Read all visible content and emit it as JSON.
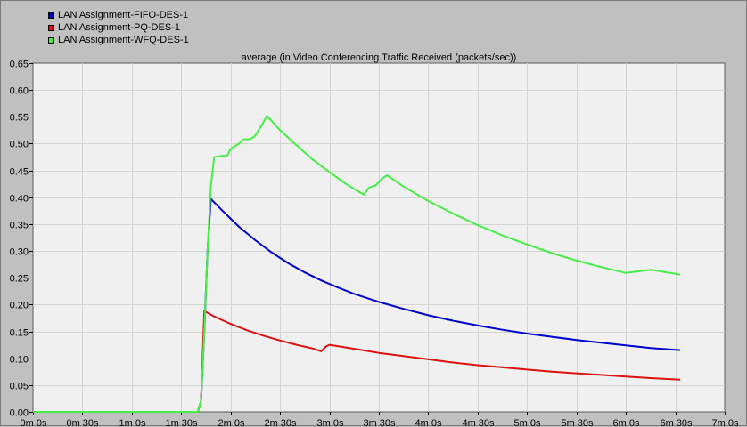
{
  "chart_data": {
    "type": "line",
    "title": "average (in Video Conferencing.Traffic Received (packets/sec))",
    "xlabel": "",
    "ylabel": "",
    "xlim": [
      0,
      420
    ],
    "ylim": [
      0,
      0.65
    ],
    "x_ticks": [
      0,
      30,
      60,
      90,
      120,
      150,
      180,
      210,
      240,
      270,
      300,
      330,
      360,
      390,
      420
    ],
    "x_tick_labels": [
      "0m 0s",
      "0m 30s",
      "1m 0s",
      "1m 30s",
      "2m 0s",
      "2m 30s",
      "3m 0s",
      "3m 30s",
      "4m 0s",
      "4m 30s",
      "5m 0s",
      "5m 30s",
      "6m 0s",
      "6m 30s",
      "7m 0s"
    ],
    "y_ticks": [
      0,
      0.05,
      0.1,
      0.15,
      0.2,
      0.25,
      0.3,
      0.35,
      0.4,
      0.45,
      0.5,
      0.55,
      0.6,
      0.65
    ],
    "y_tick_labels": [
      "0.00",
      "0.05",
      "0.10",
      "0.15",
      "0.20",
      "0.25",
      "0.30",
      "0.35",
      "0.40",
      "0.45",
      "0.50",
      "0.55",
      "0.60",
      "0.65"
    ],
    "grid": true,
    "legend_position": "top-left",
    "series": [
      {
        "name": "LAN Assignment-FIFO-DES-1",
        "color": "#0000cc",
        "points": [
          [
            0,
            0
          ],
          [
            100,
            0
          ],
          [
            102,
            0.02
          ],
          [
            104,
            0.15
          ],
          [
            106,
            0.3
          ],
          [
            108,
            0.397
          ],
          [
            115,
            0.375
          ],
          [
            125,
            0.345
          ],
          [
            135,
            0.32
          ],
          [
            145,
            0.297
          ],
          [
            155,
            0.277
          ],
          [
            165,
            0.26
          ],
          [
            175,
            0.245
          ],
          [
            185,
            0.232
          ],
          [
            195,
            0.22
          ],
          [
            210,
            0.205
          ],
          [
            225,
            0.192
          ],
          [
            240,
            0.18
          ],
          [
            255,
            0.17
          ],
          [
            270,
            0.161
          ],
          [
            285,
            0.153
          ],
          [
            300,
            0.146
          ],
          [
            315,
            0.14
          ],
          [
            330,
            0.134
          ],
          [
            345,
            0.129
          ],
          [
            360,
            0.124
          ],
          [
            375,
            0.119
          ],
          [
            393,
            0.115
          ]
        ]
      },
      {
        "name": "LAN Assignment-PQ-DES-1",
        "color": "#dd1111",
        "points": [
          [
            0,
            0
          ],
          [
            100,
            0
          ],
          [
            102,
            0.02
          ],
          [
            104,
            0.188
          ],
          [
            110,
            0.178
          ],
          [
            120,
            0.164
          ],
          [
            130,
            0.152
          ],
          [
            140,
            0.142
          ],
          [
            150,
            0.133
          ],
          [
            160,
            0.125
          ],
          [
            170,
            0.118
          ],
          [
            175,
            0.113
          ],
          [
            178,
            0.122
          ],
          [
            180,
            0.125
          ],
          [
            190,
            0.12
          ],
          [
            200,
            0.115
          ],
          [
            210,
            0.11
          ],
          [
            225,
            0.104
          ],
          [
            240,
            0.098
          ],
          [
            255,
            0.092
          ],
          [
            270,
            0.087
          ],
          [
            285,
            0.083
          ],
          [
            300,
            0.079
          ],
          [
            315,
            0.075
          ],
          [
            330,
            0.072
          ],
          [
            345,
            0.069
          ],
          [
            360,
            0.066
          ],
          [
            375,
            0.063
          ],
          [
            393,
            0.06
          ]
        ]
      },
      {
        "name": "LAN Assignment-WFQ-DES-1",
        "color": "#44ee44",
        "points": [
          [
            0,
            0
          ],
          [
            100,
            0
          ],
          [
            102,
            0.02
          ],
          [
            104,
            0.15
          ],
          [
            106,
            0.3
          ],
          [
            108,
            0.42
          ],
          [
            110,
            0.475
          ],
          [
            115,
            0.477
          ],
          [
            118,
            0.478
          ],
          [
            120,
            0.49
          ],
          [
            125,
            0.5
          ],
          [
            128,
            0.508
          ],
          [
            132,
            0.508
          ],
          [
            135,
            0.515
          ],
          [
            140,
            0.54
          ],
          [
            142,
            0.552
          ],
          [
            150,
            0.525
          ],
          [
            160,
            0.497
          ],
          [
            170,
            0.47
          ],
          [
            180,
            0.447
          ],
          [
            190,
            0.425
          ],
          [
            198,
            0.41
          ],
          [
            201,
            0.405
          ],
          [
            204,
            0.418
          ],
          [
            208,
            0.422
          ],
          [
            212,
            0.435
          ],
          [
            215,
            0.441
          ],
          [
            225,
            0.42
          ],
          [
            240,
            0.393
          ],
          [
            255,
            0.37
          ],
          [
            270,
            0.348
          ],
          [
            285,
            0.329
          ],
          [
            300,
            0.312
          ],
          [
            315,
            0.296
          ],
          [
            330,
            0.282
          ],
          [
            345,
            0.27
          ],
          [
            360,
            0.259
          ],
          [
            375,
            0.265
          ],
          [
            393,
            0.256
          ]
        ]
      }
    ]
  }
}
